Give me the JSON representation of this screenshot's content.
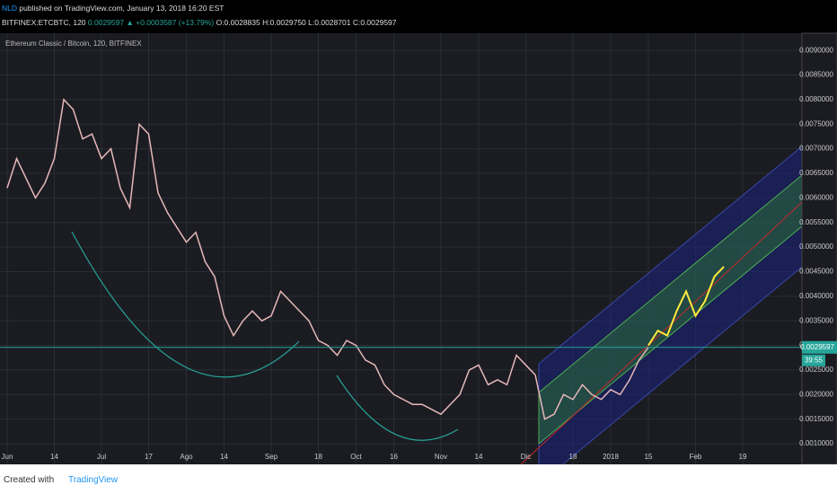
{
  "header": {
    "publisher": "NLD",
    "published": "published on TradingView.com, January 13, 2018 16:20 EST",
    "symbol": "BITFINEX:ETCBTC, 120",
    "price": "0.0029597",
    "change": "▲ +0.0003587 (+13.79%)",
    "open": "O:0.0028835",
    "high": "H:0.0029750",
    "low": "L:0.0028701",
    "close": "C:0.0029597"
  },
  "footer": {
    "created": "Created with",
    "brand": "TradingView"
  },
  "chart_data": {
    "type": "line",
    "title": "Ethereum Classic / Bitcoin, 120, BITFINEX",
    "categories": [
      "Jun",
      null,
      null,
      null,
      null,
      "14",
      null,
      null,
      null,
      null,
      "Jul",
      null,
      null,
      null,
      null,
      "17",
      null,
      null,
      null,
      "Ago",
      null,
      null,
      null,
      "14",
      null,
      null,
      null,
      null,
      "Sep",
      null,
      null,
      null,
      null,
      "18",
      null,
      null,
      null,
      "Oct",
      null,
      null,
      null,
      "16",
      null,
      null,
      null,
      null,
      "Nov",
      null,
      null,
      null,
      "14",
      null,
      null,
      null,
      null,
      "Dic",
      null,
      null,
      null,
      null,
      "18",
      null,
      null,
      null,
      "2018",
      null,
      null,
      null,
      "15",
      null,
      null,
      null,
      null,
      "Feb",
      null,
      null,
      null,
      null,
      "19",
      null,
      null,
      null,
      null,
      null
    ],
    "series": [
      {
        "color": "#e6b8b8",
        "values": [
          0.0062,
          0.0068,
          0.0064,
          0.006,
          0.0063,
          0.0068,
          0.008,
          0.0078,
          0.0072,
          0.0073,
          0.0068,
          0.007,
          0.0062,
          0.0058,
          0.0075,
          0.0073,
          0.0061,
          0.0057,
          0.0054,
          0.0051,
          0.0053,
          0.0047,
          0.0044,
          0.0036,
          0.0032,
          0.0035,
          0.0037,
          0.0035,
          0.0036,
          0.0041,
          0.0039,
          0.0037,
          0.0035,
          0.0031,
          0.003,
          0.0028,
          0.0031,
          0.003,
          0.0027,
          0.0026,
          0.0022,
          0.002,
          0.0019,
          0.0018,
          0.0018,
          0.0017,
          0.0016,
          0.0018,
          0.002,
          0.0025,
          0.0026,
          0.0022,
          0.0023,
          0.0022,
          0.0028,
          0.0026,
          0.0024,
          0.0015,
          0.0016,
          0.002,
          0.0019,
          0.0022,
          0.002,
          0.0019,
          0.0021,
          0.002,
          0.0023,
          0.0027,
          0.00296,
          null,
          null,
          null,
          null,
          null,
          null,
          null,
          null,
          null,
          null,
          null,
          null,
          null,
          null,
          null
        ]
      },
      {
        "color": "#ffeb3b",
        "values": [
          null,
          null,
          null,
          null,
          null,
          null,
          null,
          null,
          null,
          null,
          null,
          null,
          null,
          null,
          null,
          null,
          null,
          null,
          null,
          null,
          null,
          null,
          null,
          null,
          null,
          null,
          null,
          null,
          null,
          null,
          null,
          null,
          null,
          null,
          null,
          null,
          null,
          null,
          null,
          null,
          null,
          null,
          null,
          null,
          null,
          null,
          null,
          null,
          null,
          null,
          null,
          null,
          null,
          null,
          null,
          null,
          null,
          null,
          null,
          null,
          null,
          null,
          null,
          null,
          null,
          null,
          null,
          null,
          0.003,
          0.0033,
          0.0032,
          0.0037,
          0.0041,
          0.0036,
          0.0039,
          0.0044,
          0.0046,
          null,
          null,
          null,
          null,
          null,
          null,
          null
        ]
      }
    ],
    "last_price": 0.0029597,
    "countdown": "39:55",
    "ylim": [
      0.00058,
      0.00935
    ],
    "yticks": [
      {
        "value": 0.001,
        "label": "0.0010000"
      },
      {
        "value": 0.0015,
        "label": "0.0015000"
      },
      {
        "value": 0.002,
        "label": "0.0020000"
      },
      {
        "value": 0.0025,
        "label": "0.0025000"
      },
      {
        "value": 0.003,
        "label": "0.0030000"
      },
      {
        "value": 0.0035,
        "label": "0.0035000"
      },
      {
        "value": 0.004,
        "label": "0.0040000"
      },
      {
        "value": 0.0045,
        "label": "0.0045000"
      },
      {
        "value": 0.005,
        "label": "0.0050000"
      },
      {
        "value": 0.0055,
        "label": "0.0055000"
      },
      {
        "value": 0.006,
        "label": "0.0060000"
      },
      {
        "value": 0.0065,
        "label": "0.0065000"
      },
      {
        "value": 0.007,
        "label": "0.0070000"
      },
      {
        "value": 0.0075,
        "label": "0.0075000"
      },
      {
        "value": 0.008,
        "label": "0.0080000"
      },
      {
        "value": 0.0085,
        "label": "0.0085000"
      },
      {
        "value": 0.009,
        "label": "0.0090000"
      }
    ],
    "grid": true
  }
}
